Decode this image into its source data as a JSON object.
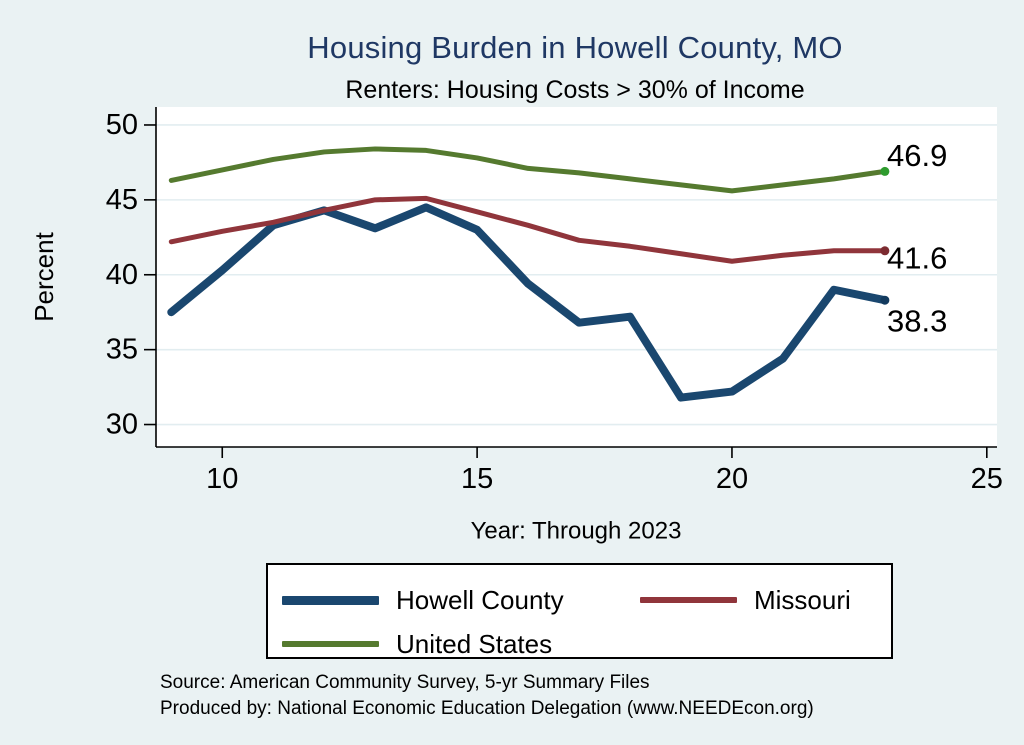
{
  "title": "Housing Burden in Howell County, MO",
  "subtitle": "Renters: Housing Costs > 30% of Income",
  "y_axis_label": "Percent",
  "x_axis_label": "Year: Through 2023",
  "source_line1": "Source: American Community Survey, 5-yr Summary Files",
  "source_line2": "Produced by: National Economic Education Delegation (www.NEEDEcon.org)",
  "colors": {
    "background": "#eaf2f3",
    "plot_background": "#ffffff",
    "gridline": "#e2edf0",
    "axis": "#000000",
    "title": "#1f3864",
    "howell_county": "#1a476f",
    "missouri": "#90353b",
    "united_states": "#557a2f"
  },
  "chart_data": {
    "type": "line",
    "x": [
      9,
      10,
      11,
      12,
      13,
      14,
      15,
      16,
      17,
      18,
      19,
      20,
      21,
      22,
      23
    ],
    "x_meaning_years": [
      2009,
      2010,
      2011,
      2012,
      2013,
      2014,
      2015,
      2016,
      2017,
      2018,
      2019,
      2020,
      2021,
      2022,
      2023
    ],
    "x_ticks": [
      10,
      15,
      20,
      25
    ],
    "y_ticks": [
      30,
      35,
      40,
      45,
      50
    ],
    "xlim": [
      8.7,
      25.2
    ],
    "ylim": [
      28.5,
      51.2
    ],
    "grid": "horizontal",
    "legend_position": "bottom",
    "series": [
      {
        "name": "Howell County",
        "color": "#1a476f",
        "marker_color": "#123a5e",
        "line_width": 8,
        "end_label": "38.3",
        "values": [
          37.5,
          40.3,
          43.3,
          44.3,
          43.1,
          44.5,
          43.0,
          39.4,
          36.8,
          37.2,
          31.8,
          32.2,
          34.4,
          39.0,
          38.3
        ]
      },
      {
        "name": "Missouri",
        "color": "#90353b",
        "marker_color": "#7c2b31",
        "line_width": 5,
        "end_label": "41.6",
        "values": [
          42.2,
          42.9,
          43.5,
          44.3,
          45.0,
          45.1,
          44.2,
          43.3,
          42.3,
          41.9,
          41.4,
          40.9,
          41.3,
          41.6,
          41.6
        ]
      },
      {
        "name": "United States",
        "color": "#557a2f",
        "marker_color": "#2e9b2e",
        "line_width": 5,
        "end_label": "46.9",
        "values": [
          46.3,
          47.0,
          47.7,
          48.2,
          48.4,
          48.3,
          47.8,
          47.1,
          46.8,
          46.4,
          46.0,
          45.6,
          46.0,
          46.4,
          46.9
        ]
      }
    ]
  }
}
